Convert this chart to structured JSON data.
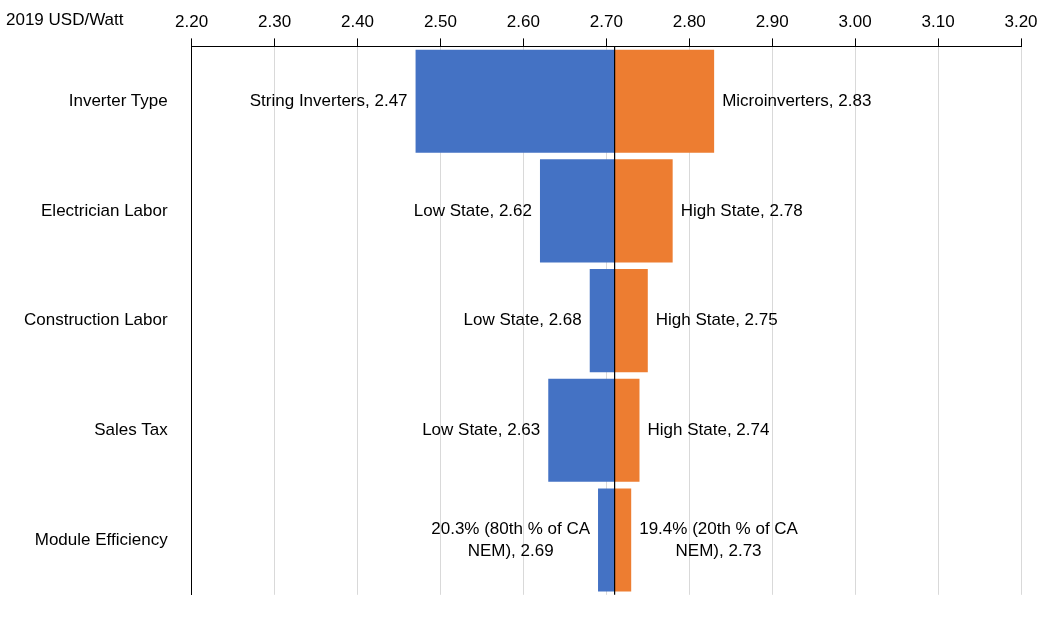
{
  "chart_data": {
    "type": "bar",
    "orientation": "horizontal",
    "xlabel": "2019 USD/Watt",
    "categories": [
      "Inverter Type",
      "Electrician Labor",
      "Construction Labor",
      "Sales Tax",
      "Module Efficiency"
    ],
    "series": [
      {
        "color": "#4472c4",
        "base": [
          2.71,
          2.71,
          2.71,
          2.71,
          2.71
        ],
        "values": [
          -0.24,
          -0.09,
          -0.03,
          -0.08,
          -0.02
        ],
        "value_labels": [
          "String Inverters, 2.47",
          "Low State, 2.62",
          "Low State, 2.68",
          "Low State, 2.63",
          null
        ]
      },
      {
        "color": "#ed7d31",
        "base": [
          2.71,
          2.71,
          2.71,
          2.71,
          2.71
        ],
        "values": [
          0.12,
          0.07,
          0.04,
          0.03,
          0.02
        ],
        "value_labels": [
          "Microinverters, 2.83",
          "High State, 2.78",
          "High State, 2.75",
          "High State, 2.74",
          null
        ]
      }
    ],
    "annotations": [
      {
        "text": "20.3% (80th % of CA NEM), 2.69",
        "x": 2.69,
        "y": "Module Efficiency"
      },
      {
        "text": "19.4% (20th % of CA NEM), 2.73",
        "x": 2.73,
        "y": "Module Efficiency"
      }
    ],
    "xlim": [
      2.2,
      3.2
    ],
    "xticks": [
      {
        "value": 2.2,
        "label": "2.20"
      },
      {
        "value": 2.3,
        "label": "2.30"
      },
      {
        "value": 2.4,
        "label": "2.40"
      },
      {
        "value": 2.5,
        "label": "2.50"
      },
      {
        "value": 2.6,
        "label": "2.60"
      },
      {
        "value": 2.7,
        "label": "2.70"
      },
      {
        "value": 2.8,
        "label": "2.80"
      },
      {
        "value": 2.9,
        "label": "2.90"
      },
      {
        "value": 3.0,
        "label": "3.00"
      },
      {
        "value": 3.1,
        "label": "3.10"
      },
      {
        "value": 3.2,
        "label": "3.20"
      }
    ],
    "ref_lines": [
      {
        "axis": "x",
        "value": 2.71,
        "color": "#000000"
      }
    ],
    "grid": "x",
    "legend": false
  }
}
